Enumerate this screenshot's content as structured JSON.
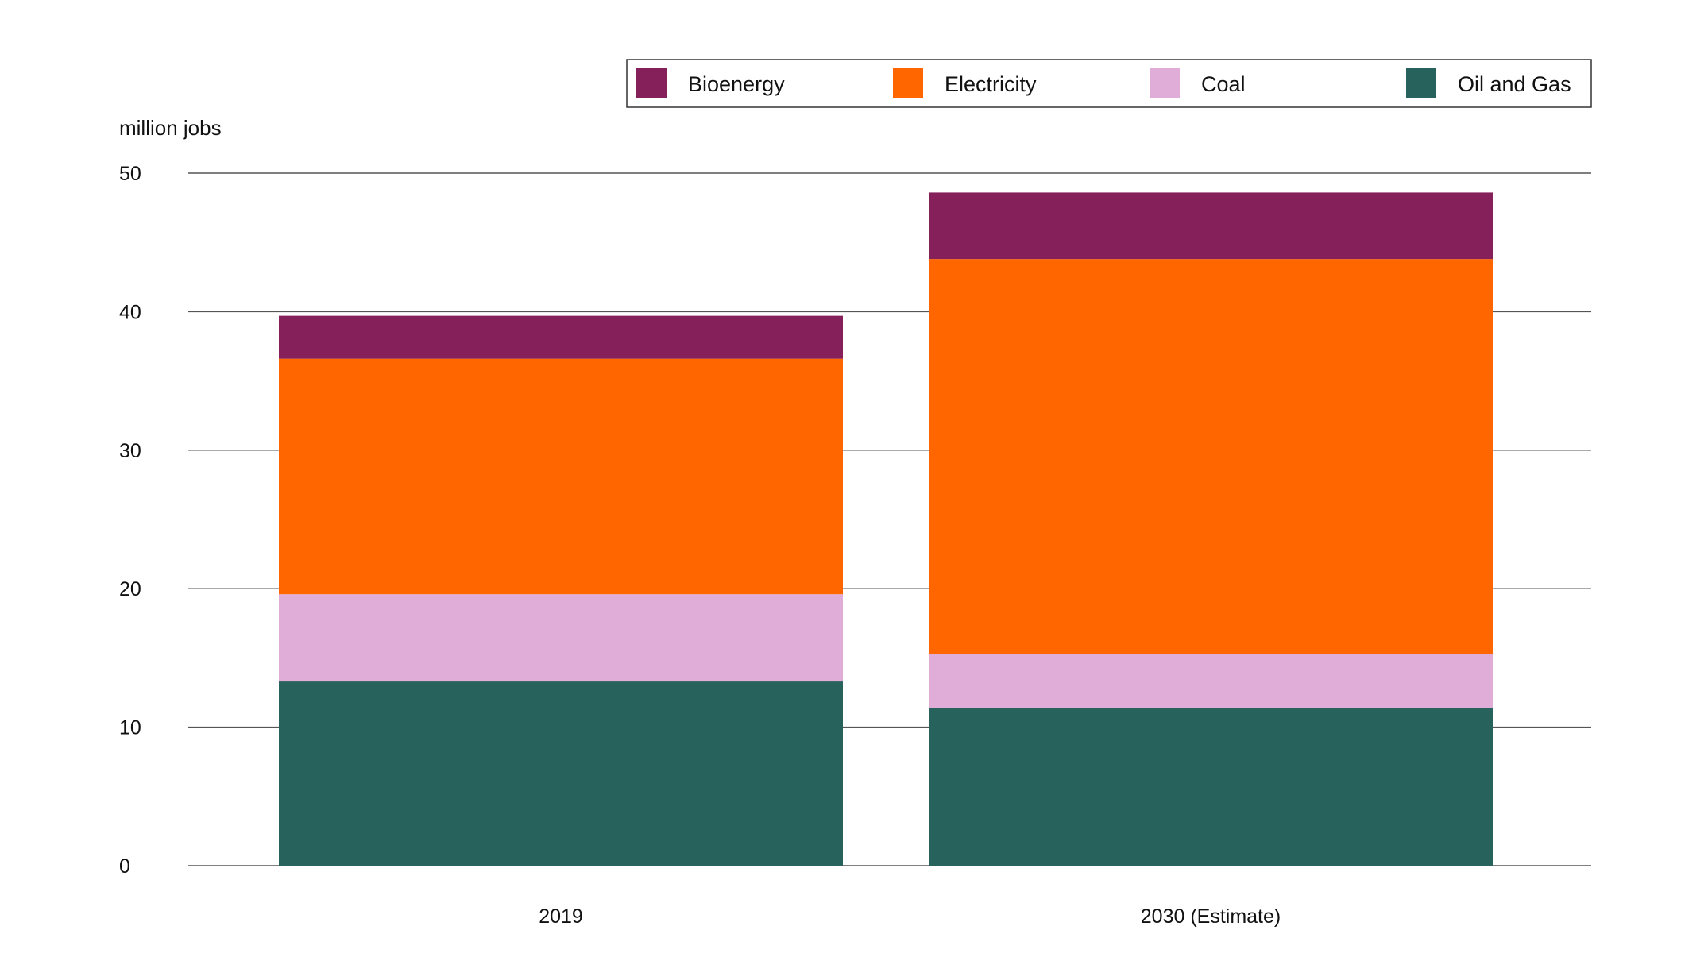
{
  "chart_data": {
    "type": "bar",
    "stacked": true,
    "ylabel": "million jobs",
    "ylim": [
      0,
      50
    ],
    "yticks": [
      "0",
      "10",
      "20",
      "30",
      "40",
      "50"
    ],
    "grid": true,
    "legend_position": "top-right",
    "categories": [
      "2019",
      "2030   (Estimate)"
    ],
    "series": [
      {
        "name": "Oil and Gas",
        "color": "#27635C",
        "values": [
          13.3,
          11.4
        ]
      },
      {
        "name": "Coal",
        "color": "#E0ACD8",
        "values": [
          6.3,
          3.9
        ]
      },
      {
        "name": "Electricity",
        "color": "#FF6600",
        "values": [
          17.0,
          28.5
        ]
      },
      {
        "name": "Bioenergy",
        "color": "#86205B",
        "values": [
          3.1,
          4.8
        ]
      }
    ],
    "legend_order": [
      "Bioenergy",
      "Electricity",
      "Coal",
      "Oil and Gas"
    ]
  }
}
